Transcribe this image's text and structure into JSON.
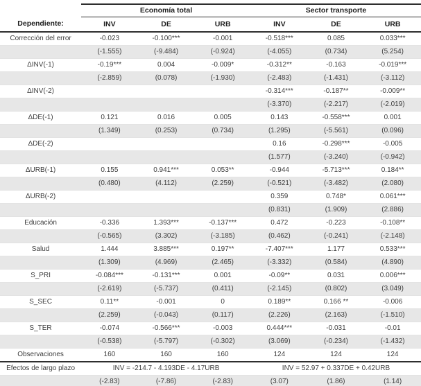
{
  "colors": {
    "band_gray": "#e7e7e7",
    "rule_dark": "#2e2e2e",
    "hairline": "#e3e3e3",
    "text": "#3d3d3d"
  },
  "table": {
    "dependent_label": "Dependiente:",
    "groups": [
      {
        "label": "Economía total"
      },
      {
        "label": "Sector transporte"
      }
    ],
    "columns": [
      "INV",
      "DE",
      "URB",
      "INV",
      "DE",
      "URB"
    ],
    "rows": [
      {
        "label": "Corrección del error",
        "values": [
          "-0.023",
          "-0.100***",
          "-0.001",
          "-0.518***",
          "0.085",
          "0.033***"
        ],
        "tstats": [
          "(-1.555)",
          "(-9.484)",
          "(-0.924)",
          "(-4.055)",
          "(0.734)",
          "(5.254)"
        ]
      },
      {
        "label": "ΔINV(-1)",
        "values": [
          "-0.19***",
          "0.004",
          "-0.009*",
          "-0.312**",
          "-0.163",
          "-0.019***"
        ],
        "tstats": [
          "(-2.859)",
          "(0.078)",
          "(-1.930)",
          "(-2.483)",
          "(-1.431)",
          "(-3.112)"
        ]
      },
      {
        "label": "ΔINV(-2)",
        "values": [
          "",
          "",
          "",
          "-0.314***",
          "-0.187**",
          "-0.009**"
        ],
        "tstats": [
          "",
          "",
          "",
          "(-3.370)",
          "(-2.217)",
          "(-2.019)"
        ]
      },
      {
        "label": "ΔDE(-1)",
        "values": [
          "0.121",
          "0.016",
          "0.005",
          "0.143",
          "-0.558***",
          "0.001"
        ],
        "tstats": [
          "(1.349)",
          "(0.253)",
          "(0.734)",
          "(1.295)",
          "(-5.561)",
          "(0.096)"
        ]
      },
      {
        "label": "ΔDE(-2)",
        "values": [
          "",
          "",
          "",
          "0.16",
          "-0.298***",
          "-0.005"
        ],
        "tstats": [
          "",
          "",
          "",
          "(1.577)",
          "(-3.240)",
          "(-0.942)"
        ]
      },
      {
        "label": "ΔURB(-1)",
        "values": [
          "0.155",
          "0.941***",
          "0.053**",
          "-0.944",
          "-5.713***",
          "0.184**"
        ],
        "tstats": [
          "(0.480)",
          "(4.112)",
          "(2.259)",
          "(-0.521)",
          "(-3.482)",
          "(2.080)"
        ]
      },
      {
        "label": "ΔURB(-2)",
        "values": [
          "",
          "",
          "",
          "0.359",
          "0.748*",
          "0.061***"
        ],
        "tstats": [
          "",
          "",
          "",
          "(0.831)",
          "(1.909)",
          "(2.886)"
        ]
      },
      {
        "label": "Educación",
        "values": [
          "-0.336",
          "1.393***",
          "-0.137***",
          "0.472",
          "-0.223",
          "-0.108**"
        ],
        "tstats": [
          "(-0.565)",
          "(3.302)",
          "(-3.185)",
          "(0.462)",
          "(-0.241)",
          "(-2.148)"
        ]
      },
      {
        "label": "Salud",
        "values": [
          "1.444",
          "3.885***",
          "0.197**",
          "-7.407***",
          "1.177",
          "0.533***"
        ],
        "tstats": [
          "(1.309)",
          "(4.969)",
          "(2.465)",
          "(-3.332)",
          "(0.584)",
          "(4.890)"
        ]
      },
      {
        "label": "S_PRI",
        "values": [
          "-0.084***",
          "-0.131***",
          "0.001",
          "-0.09**",
          "0.031",
          "0.006***"
        ],
        "tstats": [
          "(-2.619)",
          "(-5.737)",
          "(0.411)",
          "(-2.145)",
          "(0.802)",
          "(3.049)"
        ]
      },
      {
        "label": "S_SEC",
        "values": [
          "0.11**",
          "-0.001",
          "0",
          "0.189**",
          "0.166 **",
          "-0.006"
        ],
        "tstats": [
          "(2.259)",
          "(-0.043)",
          "(0.117)",
          "(2.226)",
          "(2.163)",
          "(-1.510)"
        ]
      },
      {
        "label": "S_TER",
        "values": [
          "-0.074",
          "-0.566***",
          "-0.003",
          "0.444***",
          "-0.031",
          "-0.01"
        ],
        "tstats": [
          "(-0.538)",
          "(-5.797)",
          "(-0.302)",
          "(3.069)",
          "(-0.234)",
          "(-1.432)"
        ]
      }
    ],
    "observations": {
      "label": "Observaciones",
      "values": [
        "160",
        "160",
        "160",
        "124",
        "124",
        "124"
      ]
    },
    "long_run": {
      "label": "Efectos de largo plazo",
      "equations": [
        "INV = -214.7 - 4.193DE - 4.17URB",
        "INV = 52.97 + 0.337DE + 0.42URB"
      ],
      "tstats": [
        "(-2.83)",
        "(-7.86)",
        "(-2.83)",
        "(3.07)",
        "(1.86)",
        "(1.14)"
      ]
    }
  }
}
